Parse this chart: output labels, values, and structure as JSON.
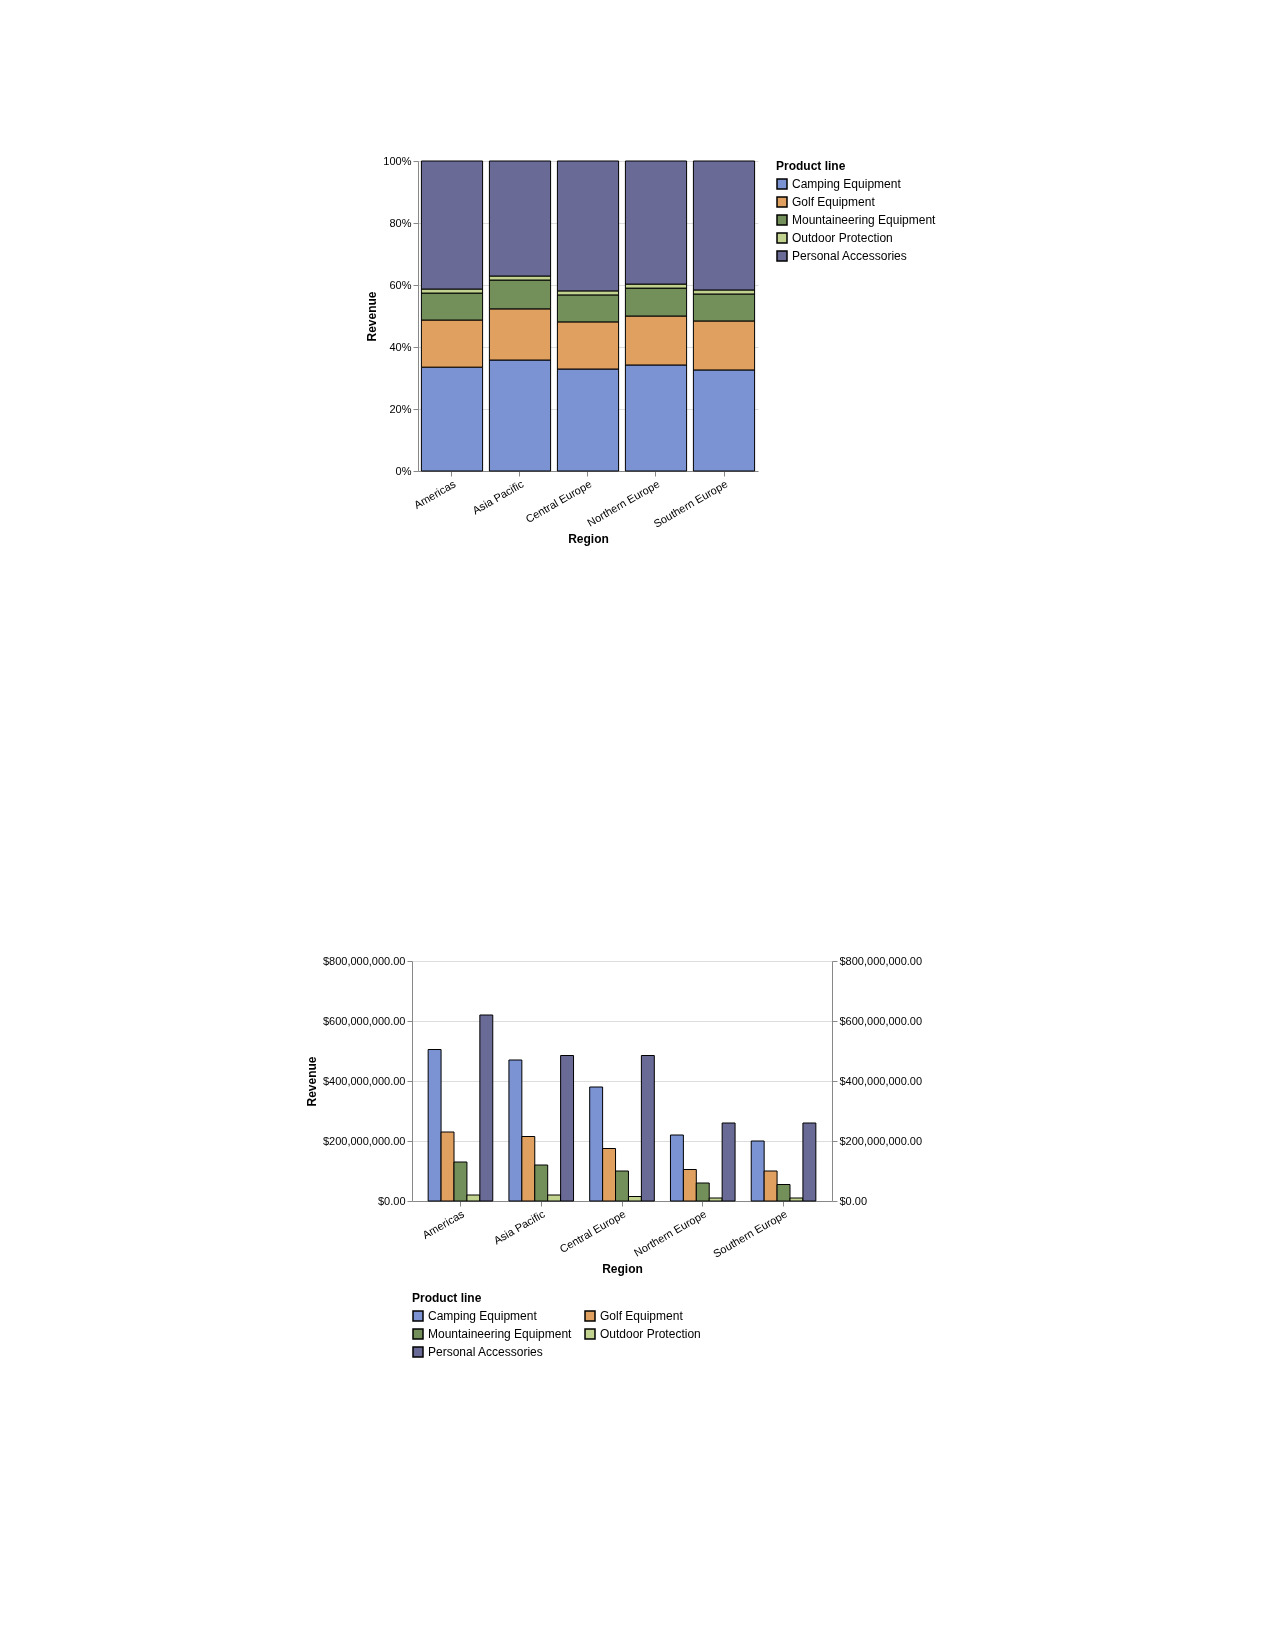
{
  "chart_data": [
    {
      "type": "bar",
      "stacked": true,
      "xlabel": "Region",
      "ylabel": "Revenue",
      "legend_title": "Product line",
      "legend": "right",
      "grid": "y",
      "categories": [
        "Americas",
        "Asia Pacific",
        "Central Europe",
        "Northern Europe",
        "Southern Europe"
      ],
      "ylim": [
        0,
        100
      ],
      "yticks": [
        {
          "value": 0,
          "label": "0%"
        },
        {
          "value": 20,
          "label": "20%"
        },
        {
          "value": 40,
          "label": "40%"
        },
        {
          "value": 60,
          "label": "60%"
        },
        {
          "value": 80,
          "label": "80%"
        },
        {
          "value": 100,
          "label": "100%"
        }
      ],
      "series": [
        {
          "name": "Camping Equipment",
          "color": "#7b93d3",
          "values": [
            33.5,
            35.8,
            32.9,
            34.2,
            32.6
          ]
        },
        {
          "name": "Golf Equipment",
          "color": "#e0a060",
          "values": [
            15.2,
            16.5,
            15.2,
            15.8,
            15.8
          ]
        },
        {
          "name": "Mountaineering Equipment",
          "color": "#74905a",
          "values": [
            8.7,
            9.3,
            8.7,
            9.0,
            8.7
          ]
        },
        {
          "name": "Outdoor Protection",
          "color": "#c2d38f",
          "values": [
            1.3,
            1.3,
            1.3,
            1.3,
            1.3
          ]
        },
        {
          "name": "Personal Accessories",
          "color": "#6a6a96",
          "values": [
            41.3,
            37.1,
            41.9,
            39.7,
            41.6
          ]
        }
      ]
    },
    {
      "type": "bar",
      "xlabel": "Region",
      "ylabel": "Revenue",
      "legend_title": "Product line",
      "legend": "bottom",
      "grid": "y",
      "categories": [
        "Americas",
        "Asia Pacific",
        "Central Europe",
        "Northern Europe",
        "Southern Europe"
      ],
      "ylim": [
        0,
        800000000
      ],
      "yticks": [
        {
          "value": 0,
          "label": "$0.00"
        },
        {
          "value": 200000000,
          "label": "$200,000,000.00"
        },
        {
          "value": 400000000,
          "label": "$400,000,000.00"
        },
        {
          "value": 600000000,
          "label": "$600,000,000.00"
        },
        {
          "value": 800000000,
          "label": "$800,000,000.00"
        }
      ],
      "y2lim": [
        0,
        800000000
      ],
      "y2ticks": [
        {
          "value": 0,
          "label": "$0.00"
        },
        {
          "value": 200000000,
          "label": "$200,000,000.00"
        },
        {
          "value": 400000000,
          "label": "$400,000,000.00"
        },
        {
          "value": 600000000,
          "label": "$600,000,000.00"
        },
        {
          "value": 800000000,
          "label": "$800,000,000.00"
        }
      ],
      "series": [
        {
          "name": "Camping Equipment",
          "color": "#7b93d3",
          "values": [
            505000000,
            470000000,
            380000000,
            220000000,
            200000000
          ]
        },
        {
          "name": "Golf Equipment",
          "color": "#e0a060",
          "values": [
            230000000,
            215000000,
            175000000,
            105000000,
            100000000
          ]
        },
        {
          "name": "Mountaineering Equipment",
          "color": "#74905a",
          "values": [
            130000000,
            120000000,
            100000000,
            60000000,
            55000000
          ]
        },
        {
          "name": "Outdoor Protection",
          "color": "#c2d38f",
          "values": [
            20000000,
            20000000,
            15000000,
            10000000,
            10000000
          ]
        },
        {
          "name": "Personal Accessories",
          "color": "#6a6a96",
          "values": [
            620000000,
            485000000,
            485000000,
            260000000,
            260000000
          ]
        }
      ]
    }
  ]
}
